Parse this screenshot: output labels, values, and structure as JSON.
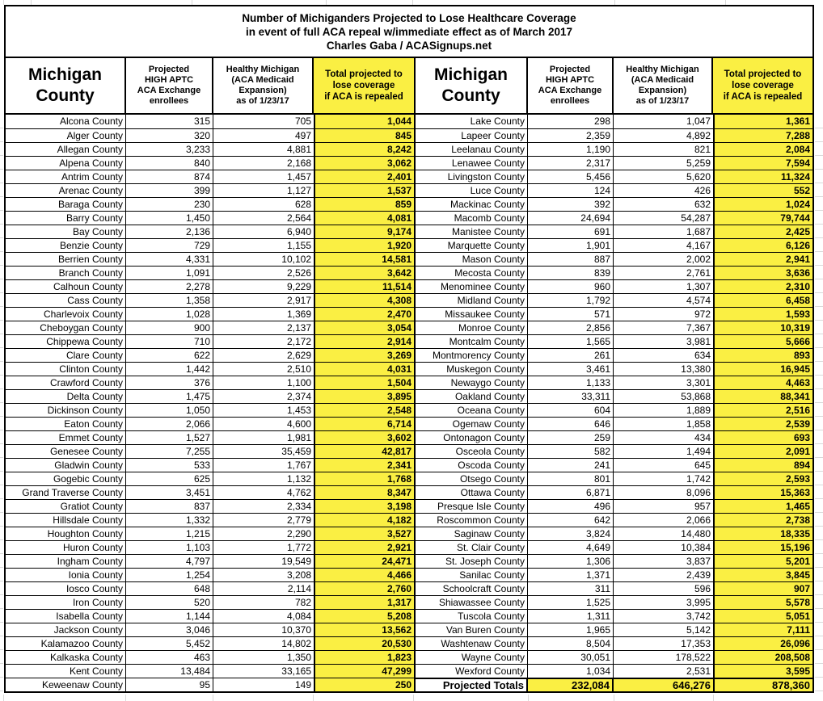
{
  "title": {
    "line1": "Number of Michiganders Projected to Lose Healthcare Coverage",
    "line2": "in event of full ACA repeal w/immediate effect as of March 2017",
    "line3": "Charles Gaba / ACASignups.net"
  },
  "headers": {
    "county": "Michigan\nCounty",
    "aptc": "Projected\nHIGH APTC\nACA Exchange\nenrollees",
    "medicaid": "Healthy Michigan\n(ACA Medicaid\nExpansion)\nas of 1/23/17",
    "total": "Total projected to\nlose coverage\nif ACA is repealed"
  },
  "colors": {
    "highlight": "#FAEF43",
    "border": "#000000",
    "gridline": "#d9d9d9"
  },
  "rows_left": [
    {
      "county": "Alcona County",
      "aptc": "315",
      "medicaid": "705",
      "total": "1,044"
    },
    {
      "county": "Alger County",
      "aptc": "320",
      "medicaid": "497",
      "total": "845"
    },
    {
      "county": "Allegan County",
      "aptc": "3,233",
      "medicaid": "4,881",
      "total": "8,242"
    },
    {
      "county": "Alpena County",
      "aptc": "840",
      "medicaid": "2,168",
      "total": "3,062"
    },
    {
      "county": "Antrim County",
      "aptc": "874",
      "medicaid": "1,457",
      "total": "2,401"
    },
    {
      "county": "Arenac County",
      "aptc": "399",
      "medicaid": "1,127",
      "total": "1,537"
    },
    {
      "county": "Baraga County",
      "aptc": "230",
      "medicaid": "628",
      "total": "859"
    },
    {
      "county": "Barry County",
      "aptc": "1,450",
      "medicaid": "2,564",
      "total": "4,081"
    },
    {
      "county": "Bay County",
      "aptc": "2,136",
      "medicaid": "6,940",
      "total": "9,174"
    },
    {
      "county": "Benzie County",
      "aptc": "729",
      "medicaid": "1,155",
      "total": "1,920"
    },
    {
      "county": "Berrien County",
      "aptc": "4,331",
      "medicaid": "10,102",
      "total": "14,581"
    },
    {
      "county": "Branch County",
      "aptc": "1,091",
      "medicaid": "2,526",
      "total": "3,642"
    },
    {
      "county": "Calhoun County",
      "aptc": "2,278",
      "medicaid": "9,229",
      "total": "11,514"
    },
    {
      "county": "Cass County",
      "aptc": "1,358",
      "medicaid": "2,917",
      "total": "4,308"
    },
    {
      "county": "Charlevoix County",
      "aptc": "1,028",
      "medicaid": "1,369",
      "total": "2,470"
    },
    {
      "county": "Cheboygan County",
      "aptc": "900",
      "medicaid": "2,137",
      "total": "3,054"
    },
    {
      "county": "Chippewa County",
      "aptc": "710",
      "medicaid": "2,172",
      "total": "2,914"
    },
    {
      "county": "Clare County",
      "aptc": "622",
      "medicaid": "2,629",
      "total": "3,269"
    },
    {
      "county": "Clinton County",
      "aptc": "1,442",
      "medicaid": "2,510",
      "total": "4,031"
    },
    {
      "county": "Crawford County",
      "aptc": "376",
      "medicaid": "1,100",
      "total": "1,504"
    },
    {
      "county": "Delta County",
      "aptc": "1,475",
      "medicaid": "2,374",
      "total": "3,895"
    },
    {
      "county": "Dickinson County",
      "aptc": "1,050",
      "medicaid": "1,453",
      "total": "2,548"
    },
    {
      "county": "Eaton County",
      "aptc": "2,066",
      "medicaid": "4,600",
      "total": "6,714"
    },
    {
      "county": "Emmet County",
      "aptc": "1,527",
      "medicaid": "1,981",
      "total": "3,602"
    },
    {
      "county": "Genesee County",
      "aptc": "7,255",
      "medicaid": "35,459",
      "total": "42,817"
    },
    {
      "county": "Gladwin County",
      "aptc": "533",
      "medicaid": "1,767",
      "total": "2,341"
    },
    {
      "county": "Gogebic County",
      "aptc": "625",
      "medicaid": "1,132",
      "total": "1,768"
    },
    {
      "county": "Grand Traverse County",
      "aptc": "3,451",
      "medicaid": "4,762",
      "total": "8,347"
    },
    {
      "county": "Gratiot County",
      "aptc": "837",
      "medicaid": "2,334",
      "total": "3,198"
    },
    {
      "county": "Hillsdale County",
      "aptc": "1,332",
      "medicaid": "2,779",
      "total": "4,182"
    },
    {
      "county": "Houghton County",
      "aptc": "1,215",
      "medicaid": "2,290",
      "total": "3,527"
    },
    {
      "county": "Huron County",
      "aptc": "1,103",
      "medicaid": "1,772",
      "total": "2,921"
    },
    {
      "county": "Ingham County",
      "aptc": "4,797",
      "medicaid": "19,549",
      "total": "24,471"
    },
    {
      "county": "Ionia County",
      "aptc": "1,254",
      "medicaid": "3,208",
      "total": "4,466"
    },
    {
      "county": "Iosco County",
      "aptc": "648",
      "medicaid": "2,114",
      "total": "2,760"
    },
    {
      "county": "Iron County",
      "aptc": "520",
      "medicaid": "782",
      "total": "1,317"
    },
    {
      "county": "Isabella County",
      "aptc": "1,144",
      "medicaid": "4,084",
      "total": "5,208"
    },
    {
      "county": "Jackson County",
      "aptc": "3,046",
      "medicaid": "10,370",
      "total": "13,562"
    },
    {
      "county": "Kalamazoo County",
      "aptc": "5,452",
      "medicaid": "14,802",
      "total": "20,530"
    },
    {
      "county": "Kalkaska County",
      "aptc": "463",
      "medicaid": "1,350",
      "total": "1,823"
    },
    {
      "county": "Kent County",
      "aptc": "13,484",
      "medicaid": "33,165",
      "total": "47,299"
    },
    {
      "county": "Keweenaw County",
      "aptc": "95",
      "medicaid": "149",
      "total": "250"
    }
  ],
  "rows_right": [
    {
      "county": "Lake County",
      "aptc": "298",
      "medicaid": "1,047",
      "total": "1,361"
    },
    {
      "county": "Lapeer County",
      "aptc": "2,359",
      "medicaid": "4,892",
      "total": "7,288"
    },
    {
      "county": "Leelanau County",
      "aptc": "1,190",
      "medicaid": "821",
      "total": "2,084"
    },
    {
      "county": "Lenawee County",
      "aptc": "2,317",
      "medicaid": "5,259",
      "total": "7,594"
    },
    {
      "county": "Livingston County",
      "aptc": "5,456",
      "medicaid": "5,620",
      "total": "11,324"
    },
    {
      "county": "Luce County",
      "aptc": "124",
      "medicaid": "426",
      "total": "552"
    },
    {
      "county": "Mackinac County",
      "aptc": "392",
      "medicaid": "632",
      "total": "1,024"
    },
    {
      "county": "Macomb County",
      "aptc": "24,694",
      "medicaid": "54,287",
      "total": "79,744"
    },
    {
      "county": "Manistee County",
      "aptc": "691",
      "medicaid": "1,687",
      "total": "2,425"
    },
    {
      "county": "Marquette County",
      "aptc": "1,901",
      "medicaid": "4,167",
      "total": "6,126"
    },
    {
      "county": "Mason County",
      "aptc": "887",
      "medicaid": "2,002",
      "total": "2,941"
    },
    {
      "county": "Mecosta County",
      "aptc": "839",
      "medicaid": "2,761",
      "total": "3,636"
    },
    {
      "county": "Menominee County",
      "aptc": "960",
      "medicaid": "1,307",
      "total": "2,310"
    },
    {
      "county": "Midland County",
      "aptc": "1,792",
      "medicaid": "4,574",
      "total": "6,458"
    },
    {
      "county": "Missaukee County",
      "aptc": "571",
      "medicaid": "972",
      "total": "1,593"
    },
    {
      "county": "Monroe County",
      "aptc": "2,856",
      "medicaid": "7,367",
      "total": "10,319"
    },
    {
      "county": "Montcalm County",
      "aptc": "1,565",
      "medicaid": "3,981",
      "total": "5,666"
    },
    {
      "county": "Montmorency County",
      "aptc": "261",
      "medicaid": "634",
      "total": "893"
    },
    {
      "county": "Muskegon County",
      "aptc": "3,461",
      "medicaid": "13,380",
      "total": "16,945"
    },
    {
      "county": "Newaygo County",
      "aptc": "1,133",
      "medicaid": "3,301",
      "total": "4,463"
    },
    {
      "county": "Oakland County",
      "aptc": "33,311",
      "medicaid": "53,868",
      "total": "88,341"
    },
    {
      "county": "Oceana County",
      "aptc": "604",
      "medicaid": "1,889",
      "total": "2,516"
    },
    {
      "county": "Ogemaw County",
      "aptc": "646",
      "medicaid": "1,858",
      "total": "2,539"
    },
    {
      "county": "Ontonagon County",
      "aptc": "259",
      "medicaid": "434",
      "total": "693"
    },
    {
      "county": "Osceola County",
      "aptc": "582",
      "medicaid": "1,494",
      "total": "2,091"
    },
    {
      "county": "Oscoda County",
      "aptc": "241",
      "medicaid": "645",
      "total": "894"
    },
    {
      "county": "Otsego County",
      "aptc": "801",
      "medicaid": "1,742",
      "total": "2,593"
    },
    {
      "county": "Ottawa County",
      "aptc": "6,871",
      "medicaid": "8,096",
      "total": "15,363"
    },
    {
      "county": "Presque Isle County",
      "aptc": "496",
      "medicaid": "957",
      "total": "1,465"
    },
    {
      "county": "Roscommon County",
      "aptc": "642",
      "medicaid": "2,066",
      "total": "2,738"
    },
    {
      "county": "Saginaw County",
      "aptc": "3,824",
      "medicaid": "14,480",
      "total": "18,335"
    },
    {
      "county": "St. Clair County",
      "aptc": "4,649",
      "medicaid": "10,384",
      "total": "15,196"
    },
    {
      "county": "St. Joseph County",
      "aptc": "1,306",
      "medicaid": "3,837",
      "total": "5,201"
    },
    {
      "county": "Sanilac County",
      "aptc": "1,371",
      "medicaid": "2,439",
      "total": "3,845"
    },
    {
      "county": "Schoolcraft County",
      "aptc": "311",
      "medicaid": "596",
      "total": "907"
    },
    {
      "county": "Shiawassee County",
      "aptc": "1,525",
      "medicaid": "3,995",
      "total": "5,578"
    },
    {
      "county": "Tuscola County",
      "aptc": "1,311",
      "medicaid": "3,742",
      "total": "5,051"
    },
    {
      "county": "Van Buren County",
      "aptc": "1,965",
      "medicaid": "5,142",
      "total": "7,111"
    },
    {
      "county": "Washtenaw County",
      "aptc": "8,504",
      "medicaid": "17,353",
      "total": "26,096"
    },
    {
      "county": "Wayne County",
      "aptc": "30,051",
      "medicaid": "178,522",
      "total": "208,508"
    },
    {
      "county": "Wexford County",
      "aptc": "1,034",
      "medicaid": "2,531",
      "total": "3,595"
    }
  ],
  "totals": {
    "label": "Projected Totals",
    "aptc": "232,084",
    "medicaid": "646,276",
    "total": "878,360"
  }
}
